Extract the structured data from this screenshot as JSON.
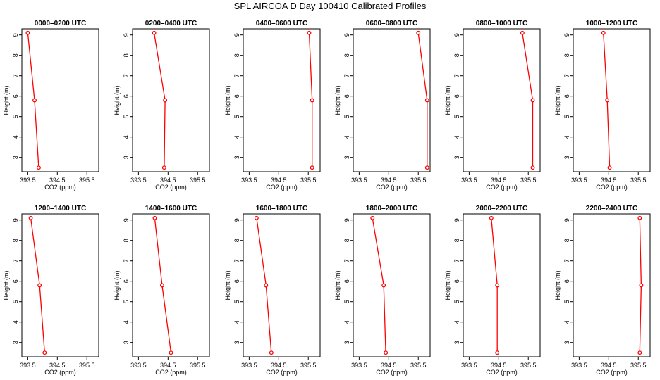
{
  "figure": {
    "title": "SPL AIRCOA D  Day 100410  Calibrated Profiles"
  },
  "chart_data": [
    {
      "type": "line",
      "title": "0000–0200 UTC",
      "xlabel": "CO2 (ppm)",
      "ylabel": "Height (m)",
      "xlim": [
        393.3,
        395.9
      ],
      "ylim": [
        2.3,
        9.3
      ],
      "xticks": [
        "393.5",
        "394.5",
        "395.5"
      ],
      "yticks": [
        "3",
        "4",
        "5",
        "6",
        "7",
        "8",
        "9"
      ],
      "grid": false,
      "series": [
        {
          "color": "#ff0000",
          "x": [
            393.5,
            393.73,
            393.87
          ],
          "y": [
            9.1,
            5.8,
            2.5
          ]
        }
      ]
    },
    {
      "type": "line",
      "title": "0200–0400 UTC",
      "xlabel": "CO2 (ppm)",
      "ylabel": "Height (m)",
      "xlim": [
        393.3,
        395.9
      ],
      "ylim": [
        2.3,
        9.3
      ],
      "xticks": [
        "393.5",
        "394.5",
        "395.5"
      ],
      "yticks": [
        "3",
        "4",
        "5",
        "6",
        "7",
        "8",
        "9"
      ],
      "grid": false,
      "series": [
        {
          "color": "#ff0000",
          "x": [
            394.03,
            394.4,
            394.37
          ],
          "y": [
            9.1,
            5.8,
            2.5
          ]
        }
      ]
    },
    {
      "type": "line",
      "title": "0400–0600 UTC",
      "xlabel": "CO2 (ppm)",
      "ylabel": "Height (m)",
      "xlim": [
        393.3,
        395.9
      ],
      "ylim": [
        2.3,
        9.3
      ],
      "xticks": [
        "393.5",
        "394.5",
        "395.5"
      ],
      "yticks": [
        "3",
        "4",
        "5",
        "6",
        "7",
        "8",
        "9"
      ],
      "grid": false,
      "series": [
        {
          "color": "#ff0000",
          "x": [
            395.53,
            395.63,
            395.63
          ],
          "y": [
            9.1,
            5.8,
            2.5
          ]
        }
      ]
    },
    {
      "type": "line",
      "title": "0600–0800 UTC",
      "xlabel": "CO2 (ppm)",
      "ylabel": "Height (m)",
      "xlim": [
        393.3,
        395.9
      ],
      "ylim": [
        2.3,
        9.3
      ],
      "xticks": [
        "393.5",
        "394.5",
        "395.5"
      ],
      "yticks": [
        "3",
        "4",
        "5",
        "6",
        "7",
        "8",
        "9"
      ],
      "grid": false,
      "series": [
        {
          "color": "#ff0000",
          "x": [
            395.5,
            395.8,
            395.8
          ],
          "y": [
            9.1,
            5.8,
            2.5
          ]
        }
      ]
    },
    {
      "type": "line",
      "title": "0800–1000 UTC",
      "xlabel": "CO2 (ppm)",
      "ylabel": "Height (m)",
      "xlim": [
        393.3,
        395.9
      ],
      "ylim": [
        2.3,
        9.3
      ],
      "xticks": [
        "393.5",
        "394.5",
        "395.5"
      ],
      "yticks": [
        "3",
        "4",
        "5",
        "6",
        "7",
        "8",
        "9"
      ],
      "grid": false,
      "series": [
        {
          "color": "#ff0000",
          "x": [
            395.3,
            395.65,
            395.65
          ],
          "y": [
            9.1,
            5.8,
            2.5
          ]
        }
      ]
    },
    {
      "type": "line",
      "title": "1000–1200 UTC",
      "xlabel": "CO2 (ppm)",
      "ylabel": "Height (m)",
      "xlim": [
        393.3,
        395.9
      ],
      "ylim": [
        2.3,
        9.3
      ],
      "xticks": [
        "393.5",
        "394.5",
        "395.5"
      ],
      "yticks": [
        "3",
        "4",
        "5",
        "6",
        "7",
        "8",
        "9"
      ],
      "grid": false,
      "series": [
        {
          "color": "#ff0000",
          "x": [
            394.32,
            394.45,
            394.53
          ],
          "y": [
            9.1,
            5.8,
            2.5
          ]
        }
      ]
    },
    {
      "type": "line",
      "title": "1200–1400 UTC",
      "xlabel": "CO2 (ppm)",
      "ylabel": "Height (m)",
      "xlim": [
        393.3,
        395.9
      ],
      "ylim": [
        2.3,
        9.3
      ],
      "xticks": [
        "393.5",
        "394.5",
        "395.5"
      ],
      "yticks": [
        "3",
        "4",
        "5",
        "6",
        "7",
        "8",
        "9"
      ],
      "grid": false,
      "series": [
        {
          "color": "#ff0000",
          "x": [
            393.6,
            393.9,
            394.07
          ],
          "y": [
            9.1,
            5.8,
            2.5
          ]
        }
      ]
    },
    {
      "type": "line",
      "title": "1400–1600 UTC",
      "xlabel": "CO2 (ppm)",
      "ylabel": "Height (m)",
      "xlim": [
        393.3,
        395.9
      ],
      "ylim": [
        2.3,
        9.3
      ],
      "xticks": [
        "393.5",
        "394.5",
        "395.5"
      ],
      "yticks": [
        "3",
        "4",
        "5",
        "6",
        "7",
        "8",
        "9"
      ],
      "grid": false,
      "series": [
        {
          "color": "#ff0000",
          "x": [
            394.05,
            394.3,
            394.6
          ],
          "y": [
            9.1,
            5.8,
            2.5
          ]
        }
      ]
    },
    {
      "type": "line",
      "title": "1600–1800 UTC",
      "xlabel": "CO2 (ppm)",
      "ylabel": "Height (m)",
      "xlim": [
        393.3,
        395.9
      ],
      "ylim": [
        2.3,
        9.3
      ],
      "xticks": [
        "393.5",
        "394.5",
        "395.5"
      ],
      "yticks": [
        "3",
        "4",
        "5",
        "6",
        "7",
        "8",
        "9"
      ],
      "grid": false,
      "series": [
        {
          "color": "#ff0000",
          "x": [
            393.75,
            394.07,
            394.25
          ],
          "y": [
            9.1,
            5.8,
            2.5
          ]
        }
      ]
    },
    {
      "type": "line",
      "title": "1800–2000 UTC",
      "xlabel": "CO2 (ppm)",
      "ylabel": "Height (m)",
      "xlim": [
        393.3,
        395.9
      ],
      "ylim": [
        2.3,
        9.3
      ],
      "xticks": [
        "393.5",
        "394.5",
        "395.5"
      ],
      "yticks": [
        "3",
        "4",
        "5",
        "6",
        "7",
        "8",
        "9"
      ],
      "grid": false,
      "series": [
        {
          "color": "#ff0000",
          "x": [
            393.95,
            394.33,
            394.4
          ],
          "y": [
            9.1,
            5.8,
            2.5
          ]
        }
      ]
    },
    {
      "type": "line",
      "title": "2000–2200 UTC",
      "xlabel": "CO2 (ppm)",
      "ylabel": "Height (m)",
      "xlim": [
        393.3,
        395.9
      ],
      "ylim": [
        2.3,
        9.3
      ],
      "xticks": [
        "393.5",
        "394.5",
        "395.5"
      ],
      "yticks": [
        "3",
        "4",
        "5",
        "6",
        "7",
        "8",
        "9"
      ],
      "grid": false,
      "series": [
        {
          "color": "#ff0000",
          "x": [
            394.25,
            394.45,
            394.45
          ],
          "y": [
            9.1,
            5.8,
            2.5
          ]
        }
      ]
    },
    {
      "type": "line",
      "title": "2200–2400 UTC",
      "xlabel": "CO2 (ppm)",
      "ylabel": "Height (m)",
      "xlim": [
        393.3,
        395.9
      ],
      "ylim": [
        2.3,
        9.3
      ],
      "xticks": [
        "393.5",
        "394.5",
        "395.5"
      ],
      "yticks": [
        "3",
        "4",
        "5",
        "6",
        "7",
        "8",
        "9"
      ],
      "grid": false,
      "series": [
        {
          "color": "#ff0000",
          "x": [
            395.55,
            395.6,
            395.55
          ],
          "y": [
            9.1,
            5.8,
            2.5
          ]
        }
      ]
    }
  ]
}
